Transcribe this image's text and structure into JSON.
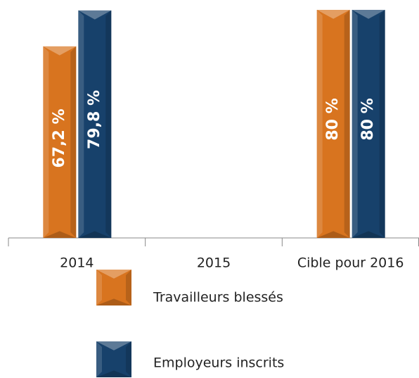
{
  "chart_data": {
    "type": "bar",
    "categories": [
      "2014",
      "2015",
      "Cible pour 2016"
    ],
    "series": [
      {
        "name": "Travailleurs blessés",
        "color": "#d8741f",
        "values": [
          67.2,
          null,
          80
        ],
        "value_labels": [
          "67,2 %",
          null,
          "80 %"
        ]
      },
      {
        "name": "Employeurs inscrits",
        "color": "#17416b",
        "values": [
          79.8,
          null,
          80
        ],
        "value_labels": [
          "79,8 %",
          null,
          "80 %"
        ]
      }
    ],
    "ylim": [
      0,
      80
    ]
  }
}
